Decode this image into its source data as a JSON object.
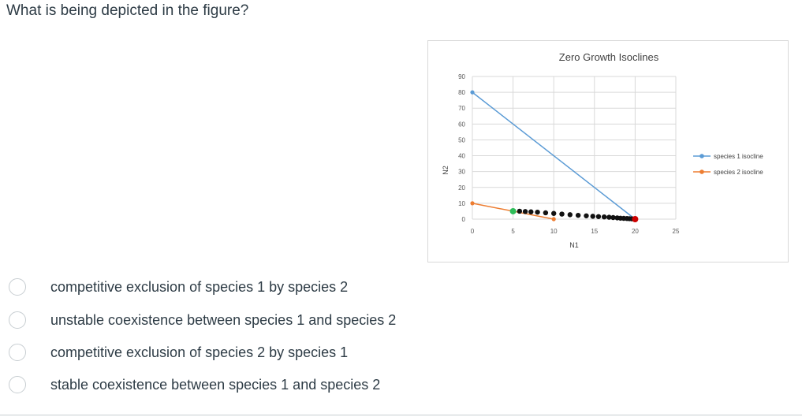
{
  "question": {
    "text": "What is being depicted in the figure?"
  },
  "answers": [
    {
      "label": "competitive exclusion of species 1 by species 2"
    },
    {
      "label": "unstable coexistence between species 1 and species 2"
    },
    {
      "label": "competitive exclusion of species 2 by species 1"
    },
    {
      "label": "stable coexistence between species 1 and species 2"
    }
  ],
  "chart_data": {
    "type": "line",
    "title": "Zero Growth Isoclines",
    "xlabel": "N1",
    "ylabel": "N2",
    "xlim": [
      0,
      25
    ],
    "ylim": [
      0,
      90
    ],
    "x_ticks": [
      "0",
      "5",
      "10",
      "15",
      "20",
      "25"
    ],
    "y_ticks": [
      "0",
      "10",
      "20",
      "30",
      "40",
      "50",
      "60",
      "70",
      "80",
      "90"
    ],
    "grid": true,
    "legend_position": "right",
    "series": [
      {
        "name": "species 1 isocline",
        "color": "#5b9bd5",
        "x": [
          0,
          20
        ],
        "y": [
          80,
          0
        ]
      },
      {
        "name": "species 2 isocline",
        "color": "#ed7d31",
        "x": [
          0,
          10
        ],
        "y": [
          10,
          0
        ]
      }
    ],
    "trajectory": {
      "start_color": "#2ebd59",
      "dot_color": "#111111",
      "end_color": "#cc0000",
      "x": [
        5,
        5.8,
        6.5,
        7.2,
        8,
        9,
        10,
        11,
        12,
        13,
        14,
        14.8,
        15.5,
        16.2,
        16.8,
        17.3,
        17.8,
        18.2,
        18.6,
        19,
        19.3,
        19.6,
        20
      ],
      "y": [
        5,
        5,
        4.8,
        4.6,
        4.4,
        4,
        3.6,
        3.2,
        2.8,
        2.4,
        2.1,
        1.8,
        1.6,
        1.4,
        1.2,
        1,
        0.8,
        0.6,
        0.5,
        0.4,
        0.3,
        0.2,
        0
      ]
    }
  }
}
